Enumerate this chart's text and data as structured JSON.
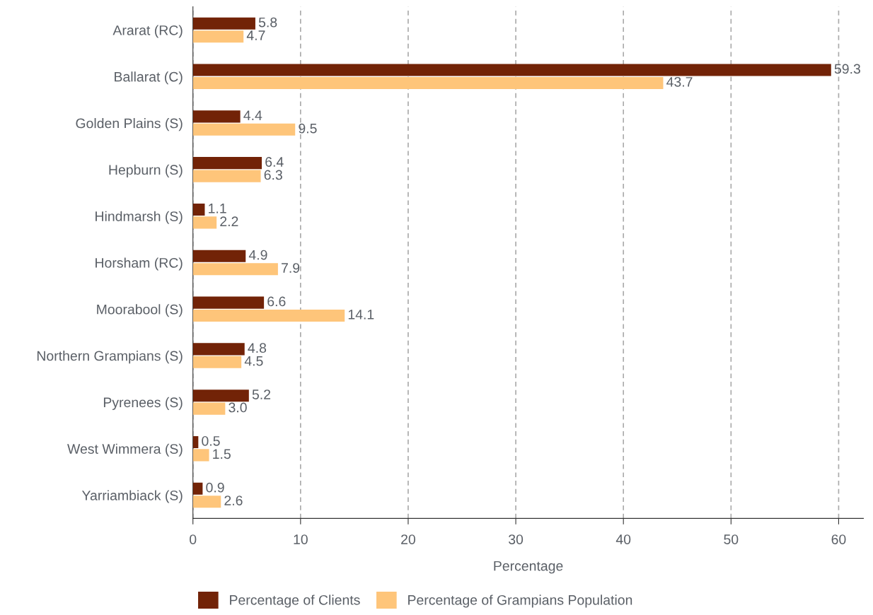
{
  "chart_data": {
    "type": "bar",
    "orientation": "horizontal",
    "xlabel": "Percentage",
    "categories": [
      "Ararat (RC)",
      "Ballarat (C)",
      "Golden Plains (S)",
      "Hepburn (S)",
      "Hindmarsh (S)",
      "Horsham (RC)",
      "Moorabool (S)",
      "Northern Grampians (S)",
      "Pyrenees (S)",
      "West Wimmera (S)",
      "Yarriambiack (S)"
    ],
    "series": [
      {
        "name": "Percentage of Clients",
        "color": "#722307",
        "values": [
          5.8,
          59.3,
          4.4,
          6.4,
          1.1,
          4.9,
          6.6,
          4.8,
          5.2,
          0.5,
          0.9
        ],
        "value_labels": [
          "5.8",
          "59.3",
          "4.4",
          "6.4",
          "1.1",
          "4.9",
          "6.6",
          "4.8",
          "5.2",
          "0.5",
          "0.9"
        ]
      },
      {
        "name": "Percentage of Grampians Population",
        "color": "#fec57a",
        "values": [
          4.7,
          43.7,
          9.5,
          6.3,
          2.2,
          7.9,
          14.1,
          4.5,
          3.0,
          1.5,
          2.6
        ],
        "value_labels": [
          "4.7",
          "43.7",
          "9.5",
          "6.3",
          "2.2",
          "7.9",
          "14.1",
          "4.5",
          "3.0",
          "1.5",
          "2.6"
        ]
      }
    ],
    "xlim": [
      0,
      62.3
    ],
    "xticks": [
      0,
      10,
      20,
      30,
      40,
      50,
      60
    ],
    "grid": "x",
    "legend": "bottom"
  }
}
